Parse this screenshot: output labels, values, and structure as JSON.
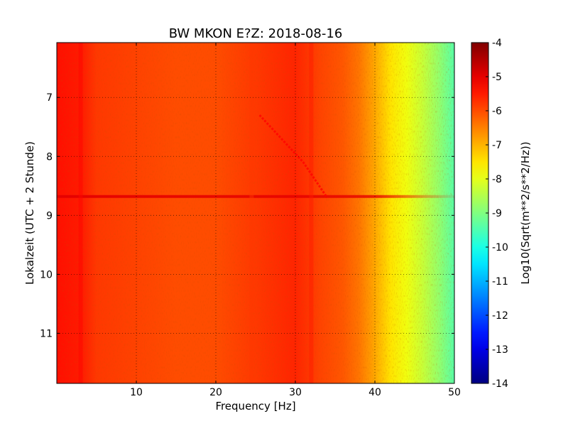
{
  "chart_data": {
    "type": "heatmap",
    "title": "BW MKON E?Z: 2018-08-16",
    "xlabel": "Frequency [Hz]",
    "ylabel": "Lokalzeit (UTC + 2 Stunde)",
    "xlim": [
      0,
      50
    ],
    "ylim": [
      11.85,
      6.07
    ],
    "y_inverted": true,
    "x_ticks": [
      "10",
      "20",
      "30",
      "40",
      "50"
    ],
    "y_ticks": [
      "7",
      "8",
      "9",
      "10",
      "11"
    ],
    "grid": true,
    "grid_style": "dotted",
    "colorbar": {
      "label": "Log10(Sqrt(m**2/s**2/Hz))",
      "min": -14,
      "max": -4,
      "colormap": "jet",
      "ticks": [
        "-4",
        "-5",
        "-6",
        "-7",
        "-8",
        "-9",
        "-10",
        "-11",
        "-12",
        "-13",
        "-14"
      ]
    },
    "spectral_profile": {
      "frequency_hz": [
        0,
        3,
        5,
        10,
        15,
        20,
        25,
        30,
        33,
        36,
        38,
        40,
        42,
        44,
        46,
        48,
        50
      ],
      "log_amplitude": [
        -5.4,
        -5.5,
        -5.8,
        -5.9,
        -6.0,
        -6.0,
        -5.8,
        -5.6,
        -5.9,
        -6.1,
        -6.4,
        -6.9,
        -7.5,
        -7.9,
        -8.3,
        -8.8,
        -9.4
      ]
    },
    "features": [
      {
        "kind": "horizontal_band",
        "time": 8.68,
        "log_amplitude": -5.0
      },
      {
        "kind": "vertical_band",
        "frequency_hz": 24.5,
        "log_amplitude": -5.8
      },
      {
        "kind": "vertical_band",
        "frequency_hz": 32.0,
        "log_amplitude": -5.5
      },
      {
        "kind": "vertical_band",
        "frequency_hz": 3.0,
        "log_amplitude": -5.3
      },
      {
        "kind": "drift_line",
        "points": [
          [
            25.5,
            7.3
          ],
          [
            31,
            8.1
          ],
          [
            34,
            8.7
          ]
        ],
        "log_amplitude": -5.3
      }
    ]
  }
}
